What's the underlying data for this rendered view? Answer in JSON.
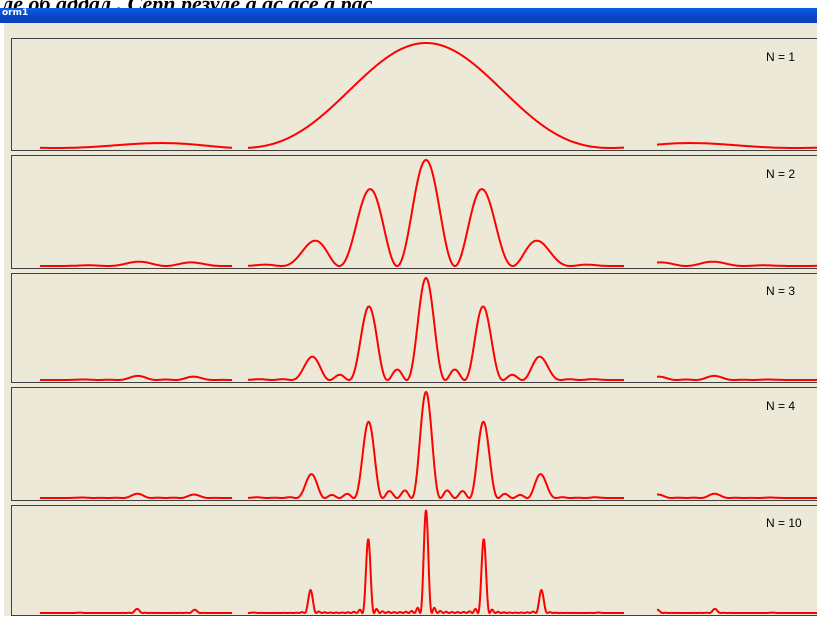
{
  "header": {
    "caption": "ле об аддал . Серп резуле а ас асе а рас"
  },
  "window": {
    "title": "orm1"
  },
  "colors": {
    "curve": "#ff0000",
    "background": "#ece9d8",
    "border": "#404040"
  },
  "panels": [
    {
      "label": "N = 1"
    },
    {
      "label": "N = 2"
    },
    {
      "label": "N = 3"
    },
    {
      "label": "N = 4"
    },
    {
      "label": "N = 10"
    }
  ],
  "chart_data": {
    "type": "line",
    "title": "",
    "xlabel": "",
    "ylabel": "",
    "grid": false,
    "description_series": "Multi-slit diffraction intensity patterns, one panel per N",
    "x": [
      -1.0,
      1.0
    ],
    "series": [
      {
        "name": "N = 1",
        "slits": 1,
        "peak": 1.0
      },
      {
        "name": "N = 2",
        "slits": 2,
        "peak": 1.0
      },
      {
        "name": "N = 3",
        "slits": 3,
        "peak": 1.0
      },
      {
        "name": "N = 4",
        "slits": 4,
        "peak": 1.0
      },
      {
        "name": "N = 10",
        "slits": 10,
        "peak": 1.0
      }
    ]
  }
}
